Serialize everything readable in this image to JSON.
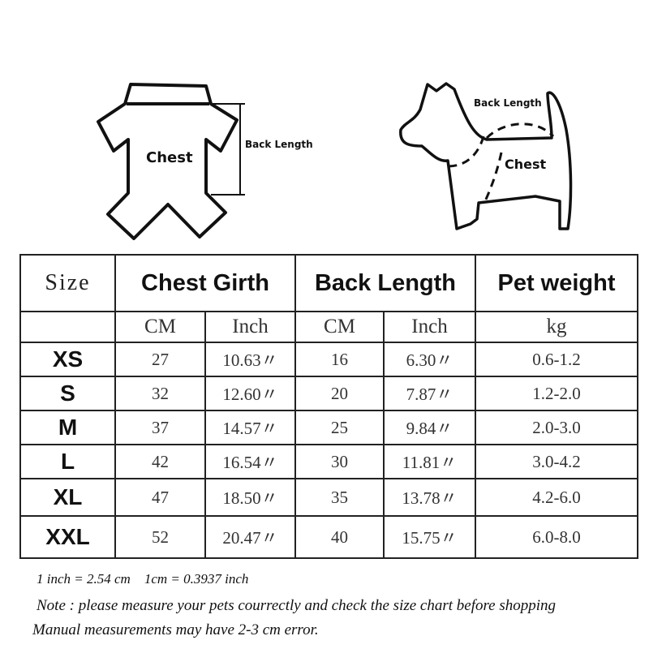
{
  "diagram": {
    "garment_chest_label": "Chest",
    "garment_back_length_label": "Back Length",
    "dog_back_length_label": "Back Length",
    "dog_chest_label": "Chest"
  },
  "table": {
    "headers": [
      "Size",
      "Chest Girth",
      "Back Length",
      "Pet weight"
    ],
    "subheaders": [
      "CM",
      "Inch",
      "CM",
      "Inch",
      "kg"
    ],
    "rows": [
      {
        "size": "XS",
        "chest_cm": "27",
        "chest_inch": "10.63〃",
        "back_cm": "16",
        "back_inch": "6.30〃",
        "weight": "0.6-1.2"
      },
      {
        "size": "S",
        "chest_cm": "32",
        "chest_inch": "12.60〃",
        "back_cm": "20",
        "back_inch": "7.87〃",
        "weight": "1.2-2.0"
      },
      {
        "size": "M",
        "chest_cm": "37",
        "chest_inch": "14.57〃",
        "back_cm": "25",
        "back_inch": "9.84〃",
        "weight": "2.0-3.0"
      },
      {
        "size": "L",
        "chest_cm": "42",
        "chest_inch": "16.54〃",
        "back_cm": "30",
        "back_inch": "11.81〃",
        "weight": "3.0-4.2"
      },
      {
        "size": "XL",
        "chest_cm": "47",
        "chest_inch": "18.50〃",
        "back_cm": "35",
        "back_inch": "13.78〃",
        "weight": "4.2-6.0"
      },
      {
        "size": "XXL",
        "chest_cm": "52",
        "chest_inch": "20.47〃",
        "back_cm": "40",
        "back_inch": "15.75〃",
        "weight": "6.0-8.0"
      }
    ]
  },
  "notes": {
    "conversion": "1 inch = 2.54 cm    1cm = 0.3937 inch",
    "note": "Note : please measure your pets courrectly and check the size chart before shopping",
    "error": "Manual measurements may have 2-3 cm error."
  }
}
